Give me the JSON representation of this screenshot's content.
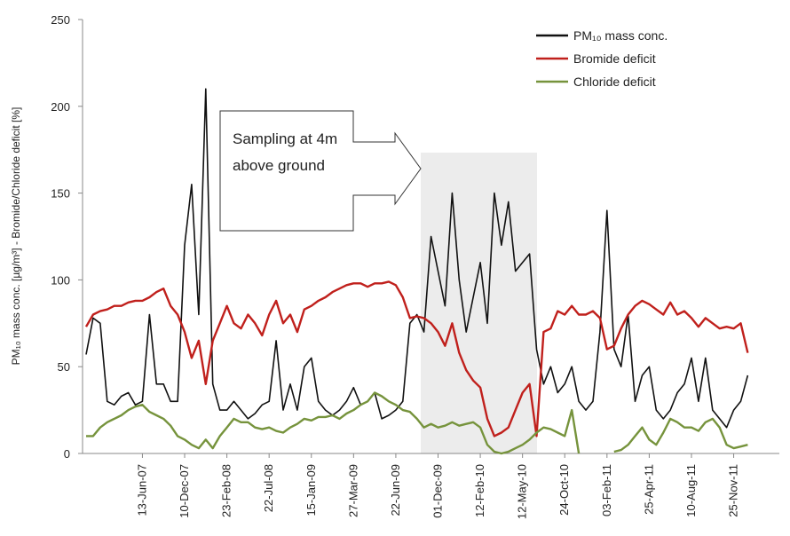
{
  "chart_data": {
    "type": "line",
    "y_label": "PM₁₀ mass conc. [µg/m³] - Bromide/Chloride deficit  [%]",
    "annotation": "Sampling at 4m above ground",
    "categories": [
      null,
      null,
      null,
      null,
      null,
      null,
      null,
      null,
      "13-Jun-07",
      null,
      null,
      null,
      null,
      null,
      "10-Dec-07",
      null,
      null,
      null,
      null,
      null,
      "23-Feb-08",
      null,
      null,
      null,
      null,
      null,
      "22-Jul-08",
      null,
      null,
      null,
      null,
      null,
      "15-Jan-09",
      null,
      null,
      null,
      null,
      null,
      "27-Mar-09",
      null,
      null,
      null,
      null,
      null,
      "22-Jun-09",
      null,
      null,
      null,
      null,
      null,
      "01-Dec-09",
      null,
      null,
      null,
      null,
      null,
      "12-Feb-10",
      null,
      null,
      null,
      null,
      null,
      "12-May-10",
      null,
      null,
      null,
      null,
      null,
      "24-Oct-10",
      null,
      null,
      null,
      null,
      null,
      "03-Feb-11",
      null,
      null,
      null,
      null,
      null,
      "25-Apr-11",
      null,
      null,
      null,
      null,
      null,
      "10-Aug-11",
      null,
      null,
      null,
      null,
      null,
      "25-Nov-11",
      null,
      null
    ],
    "series": [
      {
        "name": "PM₁₀ mass conc.",
        "color": "#111111",
        "values": [
          57,
          78,
          75,
          30,
          28,
          33,
          35,
          28,
          30,
          80,
          40,
          40,
          30,
          30,
          120,
          155,
          80,
          210,
          40,
          25,
          25,
          30,
          25,
          20,
          23,
          28,
          30,
          65,
          25,
          40,
          25,
          50,
          55,
          30,
          25,
          22,
          25,
          30,
          38,
          28,
          30,
          35,
          20,
          22,
          25,
          30,
          75,
          80,
          70,
          125,
          105,
          85,
          150,
          100,
          70,
          90,
          110,
          75,
          150,
          120,
          145,
          105,
          110,
          115,
          60,
          40,
          50,
          35,
          40,
          50,
          30,
          25,
          30,
          70,
          140,
          60,
          50,
          80,
          30,
          45,
          50,
          25,
          20,
          25,
          35,
          40,
          55,
          30,
          55,
          25,
          20,
          15,
          25,
          30,
          45
        ]
      },
      {
        "name": "Bromide deficit",
        "color": "#c0201c",
        "values": [
          73,
          80,
          82,
          83,
          85,
          85,
          87,
          88,
          88,
          90,
          93,
          95,
          85,
          80,
          70,
          55,
          65,
          40,
          65,
          75,
          85,
          75,
          72,
          80,
          75,
          68,
          80,
          88,
          75,
          80,
          70,
          83,
          85,
          88,
          90,
          93,
          95,
          97,
          98,
          98,
          96,
          98,
          98,
          99,
          97,
          90,
          78,
          79,
          78,
          75,
          70,
          62,
          75,
          58,
          48,
          42,
          38,
          20,
          10,
          12,
          15,
          25,
          35,
          40,
          10,
          70,
          72,
          82,
          80,
          85,
          80,
          80,
          82,
          78,
          60,
          62,
          72,
          80,
          85,
          88,
          86,
          83,
          80,
          87,
          80,
          82,
          78,
          73,
          78,
          75,
          72,
          73,
          72,
          75,
          58
        ]
      },
      {
        "name": "Chloride deficit",
        "color": "#76933c",
        "values": [
          10,
          10,
          15,
          18,
          20,
          22,
          25,
          27,
          28,
          24,
          22,
          20,
          16,
          10,
          8,
          5,
          3,
          8,
          3,
          10,
          15,
          20,
          18,
          18,
          15,
          14,
          15,
          13,
          12,
          15,
          17,
          20,
          19,
          21,
          21,
          22,
          20,
          23,
          25,
          28,
          30,
          35,
          33,
          30,
          28,
          25,
          24,
          20,
          15,
          17,
          15,
          16,
          18,
          16,
          17,
          18,
          15,
          5,
          1,
          0,
          1,
          3,
          5,
          8,
          12,
          15,
          14,
          12,
          10,
          25,
          0,
          null,
          null,
          null,
          null,
          1,
          2,
          5,
          10,
          15,
          8,
          5,
          12,
          20,
          18,
          15,
          15,
          13,
          18,
          20,
          15,
          5,
          3,
          4,
          5
        ]
      }
    ],
    "ylim": [
      0,
      250
    ],
    "yticks": [
      0,
      50,
      100,
      150,
      200,
      250
    ],
    "grid": false,
    "legend": "top-right"
  }
}
